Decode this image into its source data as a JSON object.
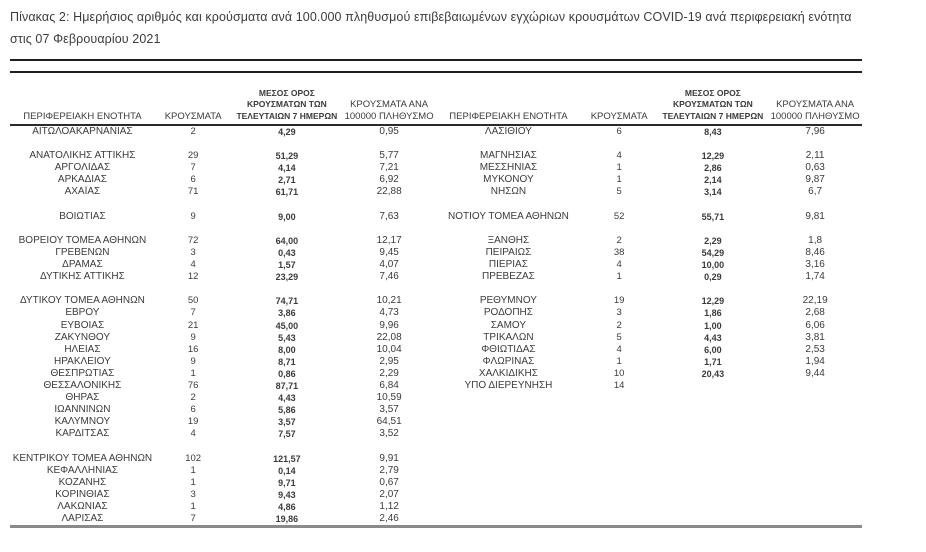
{
  "title": "Πίνακας 2:  Ημερήσιος αριθμός και κρούσματα ανά 100.000 πληθυσμού επιβεβαιωμένων εγχώριων κρουσμάτων COVID-19 ανά περιφερειακή ενότητα στις 07 Φεβρουαρίου 2021",
  "columns": [
    "ΠΕΡΙΦΕΡΕΙΑΚΗ ΕΝΟΤΗΤΑ",
    "ΚΡΟΥΣΜΑΤΑ",
    "ΜΕΣΟΣ ΟΡΟΣ\nΚΡΟΥΣΜΑΤΩΝ ΤΩΝ\nΤΕΛΕΥΤΑΙΩΝ 7 ΗΜΕΡΩΝ",
    "ΚΡΟΥΣΜΑΤΑ ΑΝΑ\n100000 ΠΛΗΘΥΣΜΟ"
  ],
  "tables": [
    {
      "name": "left",
      "rows": [
        [
          "ΑΙΤΩΛΟΑΚΑΡΝΑΝΙΑΣ",
          "2",
          "4,29",
          "0,95"
        ],
        null,
        [
          "ΑΝΑΤΟΛΙΚΗΣ ΑΤΤΙΚΗΣ",
          "29",
          "51,29",
          "5,77"
        ],
        [
          "ΑΡΓΟΛΙΔΑΣ",
          "7",
          "4,14",
          "7,21"
        ],
        [
          "ΑΡΚΑΔΙΑΣ",
          "6",
          "2,71",
          "6,92"
        ],
        [
          "ΑΧΑΪΑΣ",
          "71",
          "61,71",
          "22,88"
        ],
        null,
        [
          "ΒΟΙΩΤΙΑΣ",
          "9",
          "9,00",
          "7,63"
        ],
        null,
        [
          "ΒΟΡΕΙΟΥ ΤΟΜΕΑ ΑΘΗΝΩΝ",
          "72",
          "64,00",
          "12,17"
        ],
        [
          "ΓΡΕΒΕΝΩΝ",
          "3",
          "0,43",
          "9,45"
        ],
        [
          "ΔΡΑΜΑΣ",
          "4",
          "1,57",
          "4,07"
        ],
        [
          "ΔΥΤΙΚΗΣ ΑΤΤΙΚΗΣ",
          "12",
          "23,29",
          "7,46"
        ],
        null,
        [
          "ΔΥΤΙΚΟΥ ΤΟΜΕΑ ΑΘΗΝΩΝ",
          "50",
          "74,71",
          "10,21"
        ],
        [
          "ΕΒΡΟΥ",
          "7",
          "3,86",
          "4,73"
        ],
        [
          "ΕΥΒΟΙΑΣ",
          "21",
          "45,00",
          "9,96"
        ],
        [
          "ΖΑΚΥΝΘΟΥ",
          "9",
          "5,43",
          "22,08"
        ],
        [
          "ΗΛΕΙΑΣ",
          "16",
          "8,00",
          "10,04"
        ],
        [
          "ΗΡΑΚΛΕΙΟΥ",
          "9",
          "8,71",
          "2,95"
        ],
        [
          "ΘΕΣΠΡΩΤΙΑΣ",
          "1",
          "0,86",
          "2,29"
        ],
        [
          "ΘΕΣΣΑΛΟΝΙΚΗΣ",
          "76",
          "87,71",
          "6,84"
        ],
        [
          "ΘΗΡΑΣ",
          "2",
          "4,43",
          "10,59"
        ],
        [
          "ΙΩΑΝΝΙΝΩΝ",
          "6",
          "5,86",
          "3,57"
        ],
        [
          "ΚΑΛΥΜΝΟΥ",
          "19",
          "3,57",
          "64,51"
        ],
        [
          "ΚΑΡΔΙΤΣΑΣ",
          "4",
          "7,57",
          "3,52"
        ],
        null,
        [
          "ΚΕΝΤΡΙΚΟΥ ΤΟΜΕΑ ΑΘΗΝΩΝ",
          "102",
          "121,57",
          "9,91"
        ],
        [
          "ΚΕΦΑΛΛΗΝΙΑΣ",
          "1",
          "0,14",
          "2,79"
        ],
        [
          "ΚΟΖΑΝΗΣ",
          "1",
          "9,71",
          "0,67"
        ],
        [
          "ΚΟΡΙΝΘΙΑΣ",
          "3",
          "9,43",
          "2,07"
        ],
        [
          "ΛΑΚΩΝΙΑΣ",
          "1",
          "4,86",
          "1,12"
        ],
        [
          "ΛΑΡΙΣΑΣ",
          "7",
          "19,86",
          "2,46"
        ]
      ]
    },
    {
      "name": "right",
      "rows": [
        [
          "ΛΑΣΙΘΙΟΥ",
          "6",
          "8,43",
          "7,96"
        ],
        null,
        [
          "ΜΑΓΝΗΣΙΑΣ",
          "4",
          "12,29",
          "2,11"
        ],
        [
          "ΜΕΣΣΗΝΙΑΣ",
          "1",
          "2,86",
          "0,63"
        ],
        [
          "ΜΥΚΟΝΟΥ",
          "1",
          "2,14",
          "9,87"
        ],
        [
          "ΝΗΣΩΝ",
          "5",
          "3,14",
          "6,7"
        ],
        null,
        [
          "ΝΟΤΙΟΥ ΤΟΜΕΑ ΑΘΗΝΩΝ",
          "52",
          "55,71",
          "9,81"
        ],
        null,
        [
          "ΞΑΝΘΗΣ",
          "2",
          "2,29",
          "1,8"
        ],
        [
          "ΠΕΙΡΑΙΩΣ",
          "38",
          "54,29",
          "8,46"
        ],
        [
          "ΠΙΕΡΙΑΣ",
          "4",
          "10,00",
          "3,16"
        ],
        [
          "ΠΡΕΒΕΖΑΣ",
          "1",
          "0,29",
          "1,74"
        ],
        null,
        [
          "ΡΕΘΥΜΝΟΥ",
          "19",
          "12,29",
          "22,19"
        ],
        [
          "ΡΟΔΟΠΗΣ",
          "3",
          "1,86",
          "2,68"
        ],
        [
          "ΣΑΜΟΥ",
          "2",
          "1,00",
          "6,06"
        ],
        [
          "ΤΡΙΚΑΛΩΝ",
          "5",
          "4,43",
          "3,81"
        ],
        [
          "ΦΘΙΩΤΙΔΑΣ",
          "4",
          "6,00",
          "2,53"
        ],
        [
          "ΦΛΩΡΙΝΑΣ",
          "1",
          "1,71",
          "1,94"
        ],
        [
          "ΧΑΛΚΙΔΙΚΗΣ",
          "10",
          "20,43",
          "9,44"
        ],
        [
          "ΥΠΟ ΔΙΕΡΕΥΝΗΣΗ",
          "14",
          "",
          ""
        ],
        null,
        null,
        null,
        null,
        null,
        null,
        null,
        null,
        null,
        null,
        null
      ]
    }
  ]
}
